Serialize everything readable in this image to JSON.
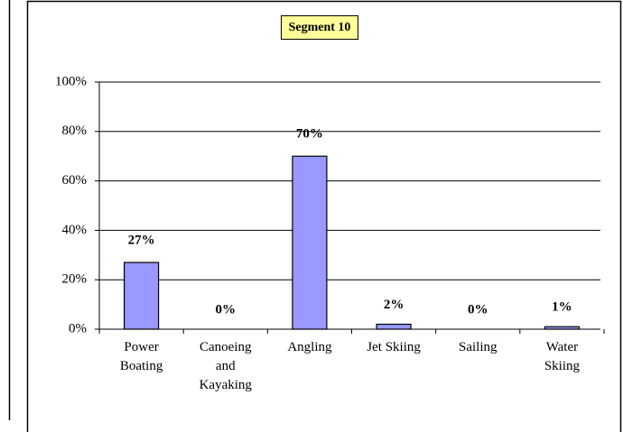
{
  "chart_data": {
    "type": "bar",
    "title": "Segment 10",
    "categories": [
      "Power Boating",
      "Canoeing and Kayaking",
      "Angling",
      "Jet Skiing",
      "Sailing",
      "Water Skiing"
    ],
    "values": [
      27,
      0,
      70,
      2,
      0,
      1
    ],
    "value_labels": [
      "27%",
      "0%",
      "70%",
      "2%",
      "0%",
      "1%"
    ],
    "color": "#9999ff",
    "ylim": [
      0,
      100
    ],
    "yticks": [
      {
        "value": 0,
        "label": "0%"
      },
      {
        "value": 20,
        "label": "20%"
      },
      {
        "value": 40,
        "label": "40%"
      },
      {
        "value": 60,
        "label": "60%"
      },
      {
        "value": 80,
        "label": "80%"
      },
      {
        "value": 100,
        "label": "100%"
      }
    ],
    "grid": true
  }
}
